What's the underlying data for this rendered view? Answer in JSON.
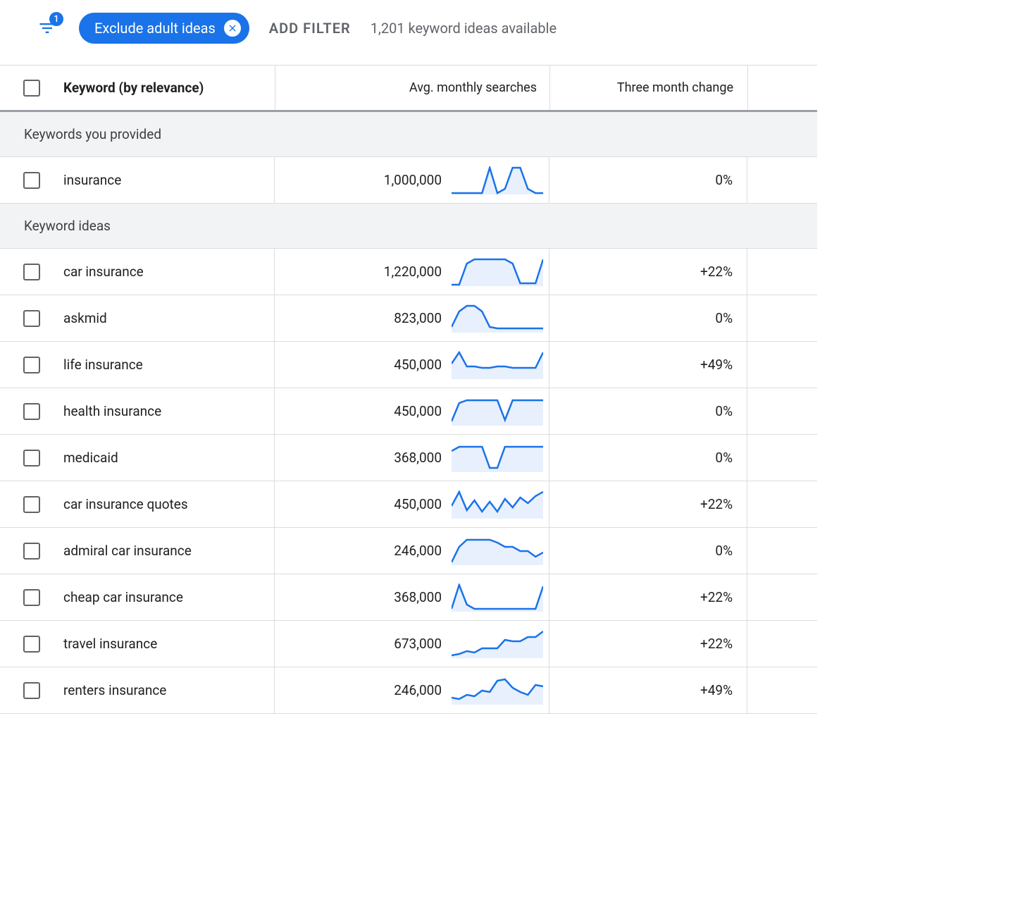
{
  "colors": {
    "primary": "#1a73e8",
    "spark_fill": "#e8f0fe",
    "text": "#202124",
    "muted": "#5f6368",
    "border": "#dadce0",
    "section_bg": "#f1f3f4",
    "header_rule": "#9aa0a6"
  },
  "filter": {
    "badge_count": "1",
    "chip_label": "Exclude adult ideas",
    "add_filter_label": "ADD FILTER",
    "available_text": "1,201 keyword ideas available"
  },
  "columns": {
    "keyword": "Keyword (by relevance)",
    "avg": "Avg. monthly searches",
    "three_month": "Three month change"
  },
  "sections": {
    "provided": "Keywords you provided",
    "ideas": "Keyword ideas"
  },
  "spark_viewbox": {
    "w": 130,
    "h": 40
  },
  "rows_provided": [
    {
      "keyword": "insurance",
      "avg": "1,000,000",
      "three_month": "0%",
      "spark": [
        2,
        2,
        2,
        2,
        2,
        38,
        2,
        8,
        38,
        38,
        8,
        2,
        2
      ]
    }
  ],
  "rows_ideas": [
    {
      "keyword": "car insurance",
      "avg": "1,220,000",
      "three_month": "+22%",
      "spark": [
        2,
        2,
        32,
        38,
        38,
        38,
        38,
        38,
        32,
        4,
        4,
        4,
        38
      ]
    },
    {
      "keyword": "askmid",
      "avg": "823,000",
      "three_month": "0%",
      "spark": [
        8,
        30,
        38,
        38,
        30,
        8,
        6,
        6,
        6,
        6,
        6,
        6,
        6
      ]
    },
    {
      "keyword": "life insurance",
      "avg": "450,000",
      "three_month": "+49%",
      "spark": [
        22,
        38,
        18,
        18,
        16,
        16,
        18,
        18,
        16,
        16,
        16,
        16,
        38
      ]
    },
    {
      "keyword": "health insurance",
      "avg": "450,000",
      "three_month": "0%",
      "spark": [
        6,
        32,
        36,
        36,
        36,
        36,
        36,
        8,
        36,
        36,
        36,
        36,
        36
      ]
    },
    {
      "keyword": "medicaid",
      "avg": "368,000",
      "three_month": "0%",
      "spark": [
        30,
        36,
        36,
        36,
        36,
        6,
        6,
        36,
        36,
        36,
        36,
        36,
        36
      ]
    },
    {
      "keyword": "car insurance quotes",
      "avg": "450,000",
      "three_month": "+22%",
      "spark": [
        18,
        38,
        12,
        26,
        10,
        24,
        10,
        28,
        16,
        30,
        22,
        32,
        38
      ]
    },
    {
      "keyword": "admiral car insurance",
      "avg": "246,000",
      "three_month": "0%",
      "spark": [
        4,
        26,
        36,
        36,
        36,
        36,
        32,
        26,
        26,
        20,
        20,
        12,
        18
      ]
    },
    {
      "keyword": "cheap car insurance",
      "avg": "368,000",
      "three_month": "+22%",
      "spark": [
        4,
        38,
        10,
        4,
        4,
        4,
        4,
        4,
        4,
        4,
        4,
        4,
        36
      ]
    },
    {
      "keyword": "travel insurance",
      "avg": "673,000",
      "three_month": "+22%",
      "spark": [
        4,
        6,
        10,
        8,
        14,
        14,
        14,
        26,
        24,
        24,
        30,
        30,
        38
      ]
    },
    {
      "keyword": "renters insurance",
      "avg": "246,000",
      "three_month": "+49%",
      "spark": [
        10,
        8,
        14,
        12,
        20,
        18,
        34,
        36,
        24,
        18,
        14,
        28,
        26
      ]
    }
  ]
}
